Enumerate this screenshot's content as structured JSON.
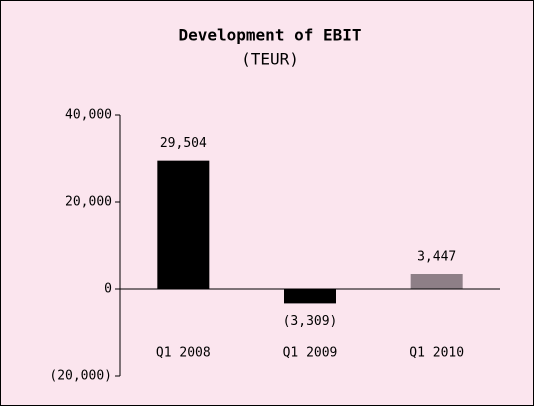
{
  "chart_data": {
    "type": "bar",
    "title": "Development of EBIT",
    "subtitle": "(TEUR)",
    "categories": [
      "Q1 2008",
      "Q1 2009",
      "Q1 2010"
    ],
    "values": [
      29504,
      -3309,
      3447
    ],
    "value_labels": [
      "29,504",
      "(3,309)",
      "3,447"
    ],
    "colors": [
      "#000000",
      "#000000",
      "#8e7f87"
    ],
    "ylim": [
      -20000,
      40000
    ],
    "yticks": [
      {
        "value": -20000,
        "label": "(20,000)"
      },
      0,
      {
        "value": 20000,
        "label": "20,000"
      },
      {
        "value": 40000,
        "label": "40,000"
      }
    ]
  }
}
